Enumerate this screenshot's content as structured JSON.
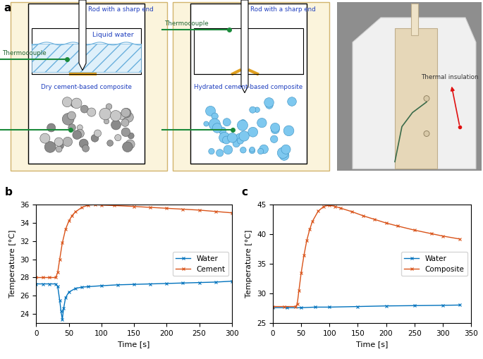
{
  "diagram": {
    "panel_label": "a",
    "before": {
      "rod": "Rod with a sharp end",
      "water": "Liquid water",
      "thermocouple": "Thermocouple",
      "composite": "Dry cement-based composite"
    },
    "after": {
      "rod": "Rod with a sharp end",
      "thermocouple": "Thermocouple",
      "composite": "Hydrated cement-based composite"
    },
    "photo": {
      "annotation": "Thermal insulation"
    }
  },
  "chart_data": [
    {
      "type": "line",
      "panel_label": "b",
      "x_label": "Time [s]",
      "y_label": "Temperature [°C]",
      "xlim": [
        0,
        300
      ],
      "xticks": [
        0,
        50,
        100,
        150,
        200,
        250,
        300
      ],
      "ylim": [
        23,
        36
      ],
      "yticks": [
        24,
        26,
        28,
        30,
        32,
        34,
        36
      ],
      "grid": false,
      "legend": "center right",
      "series": [
        {
          "name": "Water",
          "color": "#0072BD",
          "marker": "x",
          "line_style": "solid",
          "x": [
            0,
            10,
            20,
            30,
            33,
            36,
            38,
            40,
            42,
            45,
            50,
            60,
            70,
            80,
            100,
            125,
            150,
            175,
            200,
            225,
            250,
            275,
            300
          ],
          "values": [
            27.3,
            27.3,
            27.3,
            27.3,
            27.0,
            25.5,
            24.3,
            23.4,
            24.6,
            25.8,
            26.4,
            26.8,
            26.95,
            27.0,
            27.1,
            27.2,
            27.25,
            27.3,
            27.35,
            27.4,
            27.45,
            27.5,
            27.6
          ]
        },
        {
          "name": "Cement",
          "color": "#D95319",
          "marker": "x",
          "line_style": "solid",
          "x": [
            0,
            10,
            20,
            30,
            33,
            36,
            40,
            45,
            50,
            55,
            60,
            70,
            80,
            90,
            100,
            120,
            150,
            175,
            200,
            225,
            250,
            275,
            300
          ],
          "values": [
            28.0,
            28.0,
            28.0,
            28.0,
            28.6,
            30.0,
            31.8,
            33.3,
            34.2,
            34.8,
            35.2,
            35.7,
            35.95,
            36.0,
            35.95,
            35.9,
            35.8,
            35.7,
            35.6,
            35.5,
            35.4,
            35.25,
            35.1
          ]
        }
      ]
    },
    {
      "type": "line",
      "panel_label": "c",
      "x_label": "Time [s]",
      "y_label": "Temperature [°C]",
      "xlim": [
        0,
        350
      ],
      "xticks": [
        0,
        50,
        100,
        150,
        200,
        250,
        300,
        350
      ],
      "ylim": [
        25,
        45
      ],
      "yticks": [
        25,
        30,
        35,
        40,
        45
      ],
      "grid": false,
      "legend": "center right",
      "series": [
        {
          "name": "Water",
          "color": "#0072BD",
          "marker": "x",
          "line_style": "solid",
          "x": [
            0,
            25,
            50,
            75,
            100,
            150,
            200,
            250,
            300,
            330
          ],
          "values": [
            27.6,
            27.6,
            27.6,
            27.7,
            27.7,
            27.8,
            27.9,
            27.95,
            28.0,
            28.05
          ]
        },
        {
          "name": "Composite",
          "color": "#D95319",
          "marker": "x",
          "line_style": "solid",
          "x": [
            0,
            20,
            40,
            43,
            46,
            50,
            55,
            60,
            65,
            70,
            80,
            90,
            100,
            110,
            120,
            140,
            160,
            180,
            200,
            220,
            250,
            280,
            300,
            330
          ],
          "values": [
            27.8,
            27.8,
            27.8,
            28.2,
            30.5,
            33.5,
            36.5,
            39.0,
            40.8,
            42.2,
            43.9,
            44.7,
            44.9,
            44.7,
            44.4,
            43.8,
            43.1,
            42.5,
            41.9,
            41.4,
            40.7,
            40.1,
            39.7,
            39.2
          ]
        }
      ]
    }
  ]
}
